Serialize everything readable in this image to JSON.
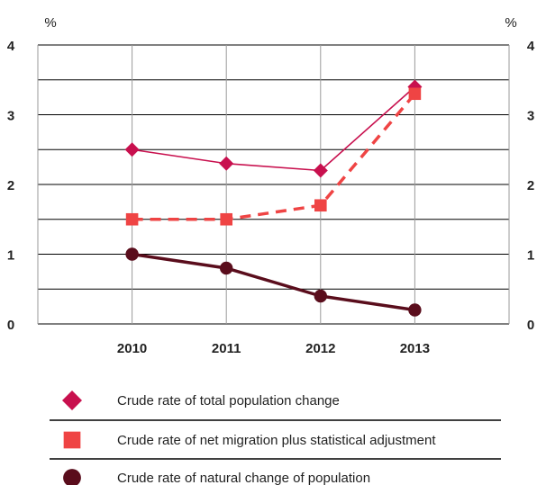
{
  "chart_data": {
    "type": "line",
    "categories": [
      "2010",
      "2011",
      "2012",
      "2013"
    ],
    "y_unit_left": "%",
    "y_unit_right": "%",
    "ylim": [
      0,
      4
    ],
    "yticks": [
      "0",
      "1",
      "2",
      "3",
      "4"
    ],
    "grid": true,
    "legend_position": "bottom",
    "series": [
      {
        "name": "Crude rate of total population change",
        "values": [
          2.5,
          2.3,
          2.2,
          3.4
        ],
        "color": "#c8104e",
        "marker": "diamond",
        "line_style": "solid-thin"
      },
      {
        "name": "Crude rate of net migration plus statistical adjustment",
        "values": [
          1.5,
          1.5,
          1.7,
          3.3
        ],
        "color": "#ef4444",
        "marker": "square",
        "line_style": "dashed"
      },
      {
        "name": "Crude rate of natural change of population",
        "values": [
          1.0,
          0.8,
          0.4,
          0.2
        ],
        "color": "#5a0d1c",
        "marker": "circle",
        "line_style": "solid-thick"
      }
    ]
  }
}
